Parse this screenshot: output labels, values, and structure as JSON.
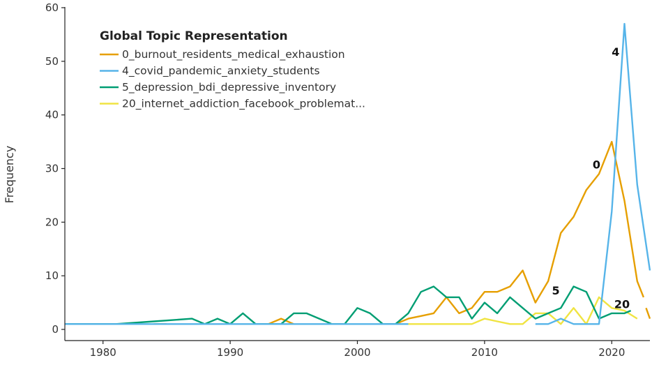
{
  "chart_data": {
    "type": "line",
    "title": "",
    "xlabel": "",
    "ylabel": "Frequency",
    "xlim": [
      1977,
      2023
    ],
    "ylim": [
      0,
      60
    ],
    "x_ticks": [
      1980,
      1990,
      2000,
      2010,
      2020
    ],
    "y_ticks": [
      0,
      10,
      20,
      30,
      40,
      50,
      60
    ],
    "grid": false,
    "legend_title": "Global Topic Representation",
    "legend_position": "top-left",
    "series": [
      {
        "name": "0_burnout_residents_medical_exhaustion",
        "color": "#e69f00",
        "annotation": "0",
        "annotation_at": [
          2018.5,
          30
        ],
        "segments": [
          [
            [
              1984,
              1
            ],
            [
              1985,
              1
            ]
          ],
          [
            [
              1993,
              1
            ],
            [
              1994,
              2
            ],
            [
              1995,
              1
            ]
          ],
          [
            [
              2003,
              1
            ],
            [
              2004,
              2
            ],
            [
              2005,
              2.5
            ],
            [
              2006,
              3
            ],
            [
              2007,
              6
            ],
            [
              2008,
              3
            ],
            [
              2009,
              4
            ],
            [
              2010,
              7
            ],
            [
              2011,
              7
            ],
            [
              2012,
              8
            ],
            [
              2013,
              11
            ],
            [
              2014,
              5
            ],
            [
              2015,
              9
            ],
            [
              2016,
              18
            ],
            [
              2017,
              21
            ],
            [
              2018,
              26
            ],
            [
              2019,
              29
            ],
            [
              2020,
              35
            ],
            [
              2021,
              24
            ],
            [
              2022,
              9
            ],
            [
              2022.5,
              6
            ]
          ],
          [
            [
              2022.7,
              4
            ],
            [
              2023,
              2
            ]
          ]
        ]
      },
      {
        "name": "4_covid_pandemic_anxiety_students",
        "color": "#56b4e9",
        "annotation": "4",
        "annotation_at": [
          2020,
          51
        ],
        "segments": [
          [
            [
              1977,
              1
            ],
            [
              1980,
              1
            ],
            [
              1985,
              1
            ],
            [
              1990,
              1
            ],
            [
              1995,
              1
            ],
            [
              2000,
              1
            ],
            [
              2004,
              1
            ]
          ],
          [
            [
              2014,
              1
            ],
            [
              2015,
              1
            ],
            [
              2016,
              2
            ],
            [
              2017,
              1
            ],
            [
              2018,
              1
            ],
            [
              2019,
              1
            ],
            [
              2020,
              22
            ],
            [
              2021,
              57
            ],
            [
              2022,
              27
            ],
            [
              2023,
              11
            ]
          ]
        ]
      },
      {
        "name": "5_depression_bdi_depressive_inventory",
        "color": "#009e73",
        "annotation": "5",
        "annotation_at": [
          2015.3,
          6.5
        ],
        "segments": [
          [
            [
              1977,
              1
            ],
            [
              1981,
              1
            ],
            [
              1984,
              1.5
            ],
            [
              1987,
              2
            ],
            [
              1988,
              1
            ],
            [
              1989,
              2
            ],
            [
              1990,
              1
            ],
            [
              1991,
              3
            ],
            [
              1992,
              1
            ],
            [
              1993,
              1
            ],
            [
              1994,
              1
            ],
            [
              1995,
              3
            ],
            [
              1996,
              3
            ],
            [
              1997,
              2
            ],
            [
              1998,
              1
            ],
            [
              1999,
              1
            ],
            [
              2000,
              4
            ],
            [
              2001,
              3
            ],
            [
              2002,
              1
            ],
            [
              2003,
              1
            ],
            [
              2004,
              3
            ],
            [
              2005,
              7
            ],
            [
              2006,
              8
            ],
            [
              2007,
              6
            ],
            [
              2008,
              6
            ],
            [
              2009,
              2
            ],
            [
              2010,
              5
            ],
            [
              2011,
              3
            ],
            [
              2012,
              6
            ],
            [
              2013,
              4
            ],
            [
              2014,
              2
            ],
            [
              2015,
              3
            ],
            [
              2016,
              4
            ],
            [
              2017,
              8
            ],
            [
              2018,
              7
            ],
            [
              2019,
              2
            ],
            [
              2020,
              3
            ],
            [
              2021,
              3
            ],
            [
              2021.5,
              3.5
            ]
          ]
        ]
      },
      {
        "name": "20_internet_addiction_facebook_problemat...",
        "color": "#f0e442",
        "annotation": "20",
        "annotation_at": [
          2020.2,
          4
        ],
        "segments": [
          [
            [
              2004,
              1
            ],
            [
              2006,
              1
            ],
            [
              2008,
              1
            ],
            [
              2009,
              1
            ],
            [
              2010,
              2
            ],
            [
              2011,
              1.5
            ],
            [
              2012,
              1
            ],
            [
              2013,
              1
            ],
            [
              2014,
              3
            ],
            [
              2015,
              3
            ],
            [
              2016,
              1
            ],
            [
              2017,
              4
            ],
            [
              2018,
              1
            ],
            [
              2019,
              6
            ],
            [
              2020,
              4
            ],
            [
              2021,
              3.5
            ],
            [
              2022,
              2
            ]
          ]
        ]
      }
    ]
  }
}
